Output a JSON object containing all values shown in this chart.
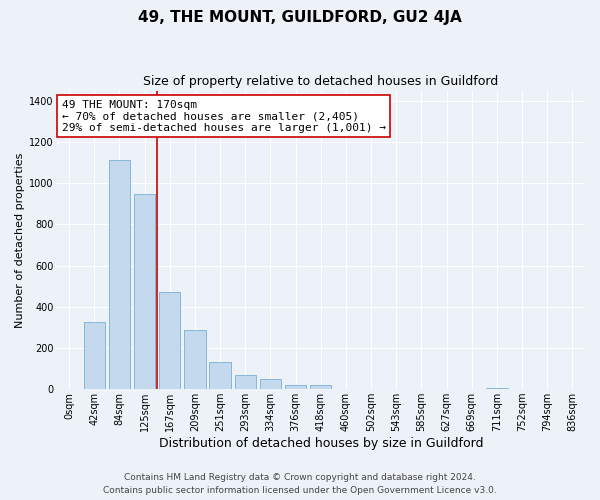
{
  "title": "49, THE MOUNT, GUILDFORD, GU2 4JA",
  "subtitle": "Size of property relative to detached houses in Guildford",
  "xlabel": "Distribution of detached houses by size in Guildford",
  "ylabel": "Number of detached properties",
  "footnote1": "Contains HM Land Registry data © Crown copyright and database right 2024.",
  "footnote2": "Contains public sector information licensed under the Open Government Licence v3.0.",
  "bar_labels": [
    "0sqm",
    "42sqm",
    "84sqm",
    "125sqm",
    "167sqm",
    "209sqm",
    "251sqm",
    "293sqm",
    "334sqm",
    "376sqm",
    "418sqm",
    "460sqm",
    "502sqm",
    "543sqm",
    "585sqm",
    "627sqm",
    "669sqm",
    "711sqm",
    "752sqm",
    "794sqm",
    "836sqm"
  ],
  "bar_values": [
    0,
    325,
    1115,
    950,
    470,
    285,
    130,
    70,
    48,
    20,
    20,
    0,
    0,
    0,
    0,
    0,
    0,
    5,
    0,
    0,
    0
  ],
  "bar_color": "#c5d9ee",
  "bar_edge_color": "#7aafd4",
  "vline_color": "#cc0000",
  "annotation_text": "49 THE MOUNT: 170sqm\n← 70% of detached houses are smaller (2,405)\n29% of semi-detached houses are larger (1,001) →",
  "annotation_box_color": "#ffffff",
  "annotation_box_edge": "#cc0000",
  "ylim": [
    0,
    1450
  ],
  "yticks": [
    0,
    200,
    400,
    600,
    800,
    1000,
    1200,
    1400
  ],
  "background_color": "#edf2f9",
  "plot_background": "#edf2f9",
  "grid_color": "#ffffff",
  "title_fontsize": 11,
  "subtitle_fontsize": 9,
  "xlabel_fontsize": 9,
  "ylabel_fontsize": 8,
  "tick_fontsize": 7,
  "annotation_fontsize": 8,
  "footnote_fontsize": 6.5
}
